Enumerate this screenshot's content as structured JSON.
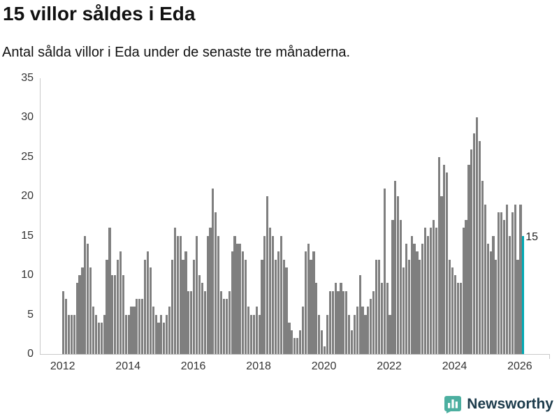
{
  "chart_data": {
    "type": "bar",
    "title": "15 villor såldes i Eda",
    "subtitle": "Antal sålda villor i Eda under de senaste tre månaderna.",
    "xlabel": "",
    "ylabel": "",
    "x_start": 2012.0,
    "x_step_months": 1,
    "xlim": [
      2011.3,
      2026.9
    ],
    "ylim": [
      0,
      35
    ],
    "yticks": [
      0,
      5,
      10,
      15,
      20,
      25,
      30,
      35
    ],
    "xticks": [
      2012,
      2014,
      2016,
      2018,
      2020,
      2022,
      2024,
      2026
    ],
    "grid": false,
    "legend": "none",
    "bar_color": "#7f7f7f",
    "highlight_color": "#00a9b4",
    "highlight_last": true,
    "annotation": "15",
    "values": [
      8,
      7,
      5,
      5,
      5,
      9,
      10,
      11,
      15,
      14,
      11,
      6,
      5,
      4,
      4,
      5,
      12,
      16,
      10,
      10,
      12,
      13,
      10,
      5,
      5,
      6,
      6,
      7,
      7,
      7,
      12,
      13,
      11,
      6,
      5,
      4,
      5,
      4,
      5,
      6,
      12,
      16,
      15,
      15,
      12,
      13,
      8,
      8,
      12,
      15,
      10,
      9,
      8,
      15,
      16,
      21,
      18,
      15,
      8,
      7,
      7,
      8,
      13,
      15,
      14,
      14,
      13,
      12,
      6,
      5,
      5,
      6,
      5,
      12,
      15,
      20,
      16,
      15,
      12,
      13,
      15,
      12,
      11,
      4,
      3,
      2,
      2,
      3,
      6,
      13,
      14,
      12,
      13,
      9,
      5,
      3,
      1,
      5,
      8,
      8,
      9,
      8,
      9,
      8,
      8,
      5,
      3,
      5,
      6,
      10,
      6,
      5,
      6,
      7,
      8,
      12,
      12,
      9,
      21,
      9,
      5,
      17,
      22,
      20,
      17,
      11,
      14,
      12,
      15,
      14,
      13,
      12,
      14,
      16,
      15,
      16,
      17,
      16,
      25,
      20,
      24,
      23,
      12,
      11,
      10,
      9,
      9,
      16,
      17,
      24,
      26,
      28,
      30,
      27,
      22,
      19,
      14,
      13,
      15,
      12,
      18,
      18,
      17,
      19,
      15,
      18,
      19,
      12,
      19,
      15
    ]
  },
  "footer": {
    "brand": "Newsworthy"
  }
}
